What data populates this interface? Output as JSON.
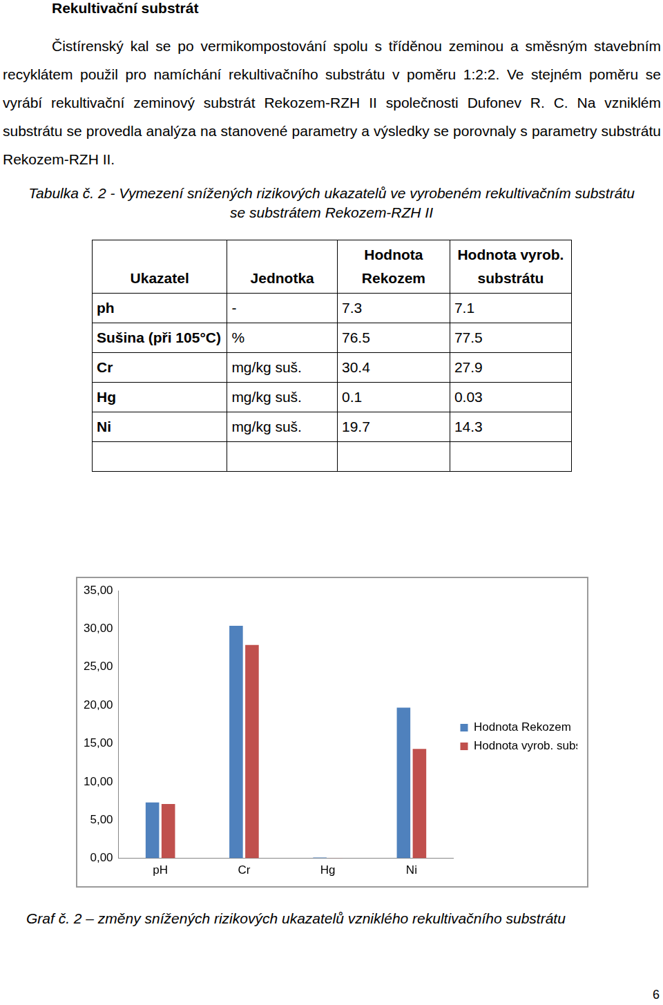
{
  "heading": "Rekultivační substrát",
  "paragraph": "Čistírenský kal se po vermikompostování spolu s tříděnou zeminou a směsným stavebním recyklátem použil pro namíchání rekultivačního substrátu v poměru 1:2:2. Ve stejném poměru se vyrábí rekultivační zeminový substrát Rekozem-RZH II společnosti Dufonev R. C. Na vzniklém substrátu se provedla analýza na stanovené parametry a výsledky se porovnaly s parametry substrátu Rekozem-RZH II.",
  "table": {
    "caption": "Tabulka č. 2 - Vymezení snížených rizikových ukazatelů ve vyrobeném rekultivačním substrátu se  substrátem Rekozem-RZH II",
    "header": [
      "Ukazatel",
      "Jednotka",
      "Hodnota Rekozem",
      "Hodnota vyrob. substrátu"
    ],
    "rows": [
      [
        "ph",
        "-",
        "7.3",
        "7.1"
      ],
      [
        "Sušina (při 105°C)",
        "%",
        "76.5",
        "77.5"
      ],
      [
        "Cr",
        "mg/kg suš.",
        "30.4",
        "27.9"
      ],
      [
        "Hg",
        "mg/kg suš.",
        "0.1",
        "0.03"
      ],
      [
        "Ni",
        "mg/kg suš.",
        "19.7",
        "14.3"
      ]
    ]
  },
  "chart_data": {
    "type": "bar",
    "categories": [
      "pH",
      "Cr",
      "Hg",
      "Ni"
    ],
    "series": [
      {
        "name": "Hodnota Rekozem",
        "color": "#4f81bd",
        "values": [
          7.3,
          30.4,
          0.1,
          19.7
        ]
      },
      {
        "name": "Hodnota vyrob. substrátu",
        "color": "#c0504d",
        "values": [
          7.1,
          27.9,
          0.03,
          14.3
        ]
      }
    ],
    "ylim": [
      0,
      35
    ],
    "yticks": [
      {
        "value": 0,
        "label": "0,00"
      },
      {
        "value": 5,
        "label": "5,00"
      },
      {
        "value": 10,
        "label": "10,00"
      },
      {
        "value": 15,
        "label": "15,00"
      },
      {
        "value": 20,
        "label": "20,00"
      },
      {
        "value": 25,
        "label": "25,00"
      },
      {
        "value": 30,
        "label": "30,00"
      },
      {
        "value": 35,
        "label": "35,00"
      }
    ],
    "grid": false,
    "legend": "right"
  },
  "figure_caption": "Graf č. 2 – změny snížených rizikových ukazatelů vzniklého rekultivačního substrátu",
  "page_number": "6"
}
